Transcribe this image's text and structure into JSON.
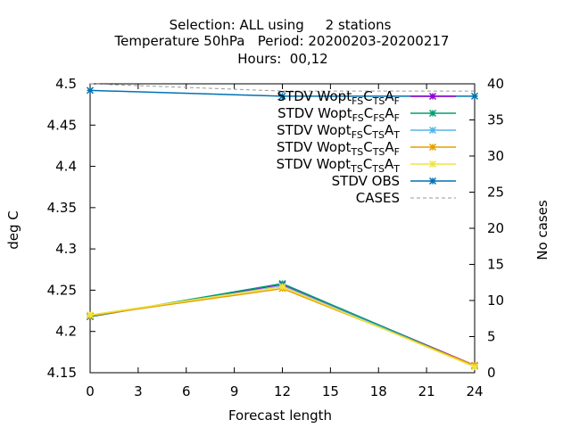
{
  "title": {
    "line1": "Selection: ALL using     2 stations",
    "line2": "Temperature 50hPa   Period: 20200203-20200217",
    "line3": "Hours:  00,12"
  },
  "chart_data": {
    "type": "line",
    "xlabel": "Forecast length",
    "ylabel": "deg C",
    "y2label": "No cases",
    "xlim": [
      0,
      24
    ],
    "ylim": [
      4.15,
      4.5
    ],
    "y2lim": [
      0,
      40
    ],
    "xticks": [
      "0",
      "3",
      "6",
      "9",
      "12",
      "15",
      "18",
      "21",
      "24"
    ],
    "yticks": [
      "4.15",
      "4.2",
      "4.25",
      "4.3",
      "4.35",
      "4.4",
      "4.45",
      "4.5"
    ],
    "y2ticks": [
      "0",
      "5",
      "10",
      "15",
      "20",
      "25",
      "30",
      "35",
      "40"
    ],
    "grid": false,
    "legend_position": "top-right",
    "series": [
      {
        "label": [
          "STDV Wopt",
          "FS",
          "C",
          "TS",
          "A",
          "F"
        ],
        "color": "#9400d3",
        "axis": "y",
        "x": [
          0,
          12,
          24
        ],
        "values": [
          4.218,
          4.257,
          4.159
        ]
      },
      {
        "label": [
          "STDV Wopt",
          "FS",
          "C",
          "FS",
          "A",
          "F"
        ],
        "color": "#009e73",
        "axis": "y",
        "x": [
          0,
          12,
          24
        ],
        "values": [
          4.218,
          4.258,
          4.158
        ]
      },
      {
        "label": [
          "STDV Wopt",
          "FS",
          "C",
          "TS",
          "A",
          "T"
        ],
        "color": "#56b4e9",
        "axis": "y",
        "x": [
          0,
          12,
          24
        ],
        "values": [
          4.219,
          4.255,
          4.158
        ]
      },
      {
        "label": [
          "STDV Wopt",
          "TS",
          "C",
          "TS",
          "A",
          "F"
        ],
        "color": "#e69f00",
        "axis": "y",
        "x": [
          0,
          12,
          24
        ],
        "values": [
          4.219,
          4.252,
          4.159
        ]
      },
      {
        "label": [
          "STDV Wopt",
          "TS",
          "C",
          "TS",
          "A",
          "T"
        ],
        "color": "#f0e442",
        "axis": "y",
        "x": [
          0,
          12,
          24
        ],
        "values": [
          4.22,
          4.254,
          4.157
        ]
      },
      {
        "label": [
          "STDV OBS"
        ],
        "color": "#0072b2",
        "axis": "y",
        "x": [
          0,
          12,
          24
        ],
        "values": [
          4.492,
          4.485,
          4.485
        ]
      },
      {
        "label": [
          "CASES"
        ],
        "color": "#999999",
        "axis": "y2",
        "dashed": true,
        "x": [
          0,
          12,
          24
        ],
        "values": [
          40,
          39,
          39
        ]
      }
    ]
  }
}
